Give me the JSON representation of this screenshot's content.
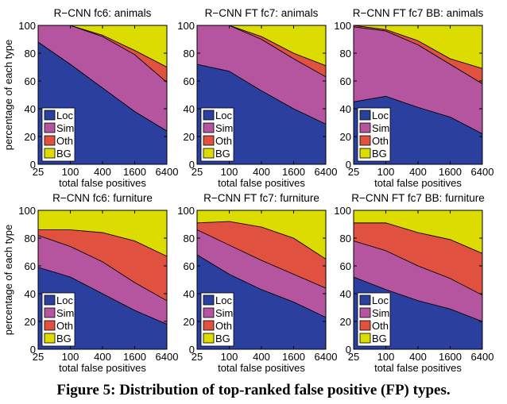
{
  "caption": "Figure 5: Distribution of top-ranked false positive (FP) types.",
  "colors": {
    "Loc": "#2b3f9f",
    "Sim": "#b5549f",
    "Oth": "#e0523f",
    "BG": "#dcdc00"
  },
  "chart_data": [
    {
      "type": "area",
      "title": "R−CNN fc6: animals",
      "xlabel": "total false positives",
      "ylabel": "percentage of each type",
      "x": [
        25,
        100,
        400,
        1600,
        6400
      ],
      "x_tick_labels": [
        "25",
        "100",
        "400",
        "1600",
        "6400"
      ],
      "ylim": [
        0,
        100
      ],
      "y_ticks": [
        0,
        20,
        40,
        60,
        80,
        100
      ],
      "legend": [
        "Loc",
        "Sim",
        "Oth",
        "BG"
      ],
      "series": [
        {
          "name": "Loc",
          "values": [
            88,
            72,
            55,
            38,
            24
          ]
        },
        {
          "name": "Sim",
          "values": [
            12,
            28,
            37,
            41,
            35
          ]
        },
        {
          "name": "Oth",
          "values": [
            0,
            0,
            1,
            3,
            11
          ]
        },
        {
          "name": "BG",
          "values": [
            0,
            0,
            7,
            18,
            30
          ]
        }
      ]
    },
    {
      "type": "area",
      "title": "R−CNN FT fc7: animals",
      "xlabel": "total false positives",
      "ylabel": "",
      "x": [
        25,
        100,
        400,
        1600,
        6400
      ],
      "x_tick_labels": [
        "25",
        "100",
        "400",
        "1600",
        "6400"
      ],
      "ylim": [
        0,
        100
      ],
      "y_ticks": [
        0,
        20,
        40,
        60,
        80,
        100
      ],
      "legend": [
        "Loc",
        "Sim",
        "Oth",
        "BG"
      ],
      "series": [
        {
          "name": "Loc",
          "values": [
            72,
            67,
            53,
            40,
            29
          ]
        },
        {
          "name": "Sim",
          "values": [
            28,
            33,
            37,
            36,
            34
          ]
        },
        {
          "name": "Oth",
          "values": [
            0,
            0,
            2,
            4,
            8
          ]
        },
        {
          "name": "BG",
          "values": [
            0,
            0,
            8,
            20,
            29
          ]
        }
      ]
    },
    {
      "type": "area",
      "title": "R−CNN FT fc7 BB: animals",
      "xlabel": "total false positives",
      "ylabel": "",
      "x": [
        25,
        100,
        400,
        1600,
        6400
      ],
      "x_tick_labels": [
        "25",
        "100",
        "400",
        "1600",
        "6400"
      ],
      "ylim": [
        0,
        100
      ],
      "y_ticks": [
        0,
        20,
        40,
        60,
        80,
        100
      ],
      "legend": [
        "Loc",
        "Sim",
        "Oth",
        "BG"
      ],
      "series": [
        {
          "name": "Loc",
          "values": [
            45,
            49,
            41,
            34,
            22
          ]
        },
        {
          "name": "Sim",
          "values": [
            54,
            47,
            45,
            38,
            36
          ]
        },
        {
          "name": "Oth",
          "values": [
            1,
            1,
            3,
            4,
            11
          ]
        },
        {
          "name": "BG",
          "values": [
            0,
            3,
            11,
            24,
            31
          ]
        }
      ]
    },
    {
      "type": "area",
      "title": "R−CNN fc6: furniture",
      "xlabel": "total false positives",
      "ylabel": "percentage of each type",
      "x": [
        25,
        100,
        400,
        1600,
        6400
      ],
      "x_tick_labels": [
        "25",
        "100",
        "400",
        "1600",
        "6400"
      ],
      "ylim": [
        0,
        100
      ],
      "y_ticks": [
        0,
        20,
        40,
        60,
        80,
        100
      ],
      "legend": [
        "Loc",
        "Sim",
        "Oth",
        "BG"
      ],
      "series": [
        {
          "name": "Loc",
          "values": [
            59,
            52,
            40,
            28,
            18
          ]
        },
        {
          "name": "Sim",
          "values": [
            23,
            22,
            23,
            20,
            17
          ]
        },
        {
          "name": "Oth",
          "values": [
            4,
            12,
            21,
            30,
            32
          ]
        },
        {
          "name": "BG",
          "values": [
            14,
            14,
            16,
            22,
            33
          ]
        }
      ]
    },
    {
      "type": "area",
      "title": "R−CNN FT fc7: furniture",
      "xlabel": "total false positives",
      "ylabel": "",
      "x": [
        25,
        100,
        400,
        1600,
        6400
      ],
      "x_tick_labels": [
        "25",
        "100",
        "400",
        "1600",
        "6400"
      ],
      "ylim": [
        0,
        100
      ],
      "y_ticks": [
        0,
        20,
        40,
        60,
        80,
        100
      ],
      "legend": [
        "Loc",
        "Sim",
        "Oth",
        "BG"
      ],
      "series": [
        {
          "name": "Loc",
          "values": [
            68,
            54,
            43,
            34,
            23
          ]
        },
        {
          "name": "Sim",
          "values": [
            18,
            21,
            21,
            20,
            21
          ]
        },
        {
          "name": "Oth",
          "values": [
            5,
            17,
            24,
            26,
            21
          ]
        },
        {
          "name": "BG",
          "values": [
            9,
            8,
            12,
            20,
            35
          ]
        }
      ]
    },
    {
      "type": "area",
      "title": "R−CNN FT fc7 BB: furniture",
      "xlabel": "total false positives",
      "ylabel": "",
      "x": [
        25,
        100,
        400,
        1600,
        6400
      ],
      "x_tick_labels": [
        "25",
        "100",
        "400",
        "1600",
        "6400"
      ],
      "ylim": [
        0,
        100
      ],
      "y_ticks": [
        0,
        20,
        40,
        60,
        80,
        100
      ],
      "legend": [
        "Loc",
        "Sim",
        "Oth",
        "BG"
      ],
      "series": [
        {
          "name": "Loc",
          "values": [
            52,
            43,
            35,
            29,
            20
          ]
        },
        {
          "name": "Sim",
          "values": [
            26,
            28,
            25,
            22,
            19
          ]
        },
        {
          "name": "Oth",
          "values": [
            13,
            20,
            24,
            28,
            30
          ]
        },
        {
          "name": "BG",
          "values": [
            9,
            9,
            16,
            21,
            31
          ]
        }
      ]
    }
  ]
}
